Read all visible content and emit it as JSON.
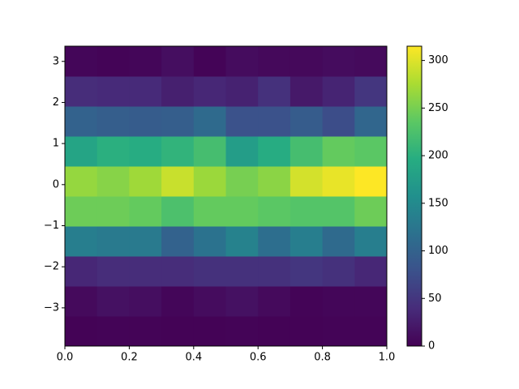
{
  "chart_data": {
    "type": "hist2d",
    "xbins": [
      0,
      0.1,
      0.2,
      0.3,
      0.4,
      0.5,
      0.6,
      0.7,
      0.8,
      0.9,
      1.0
    ],
    "ybins": [
      -3.93,
      -3.2,
      -2.47,
      -1.74,
      -1.01,
      -0.28,
      0.45,
      1.18,
      1.91,
      2.64,
      3.37
    ],
    "counts": [
      [
        2,
        3,
        3,
        2,
        2,
        3,
        2,
        2,
        3,
        3
      ],
      [
        8,
        15,
        12,
        5,
        10,
        15,
        8,
        3,
        5,
        5
      ],
      [
        35,
        40,
        40,
        40,
        45,
        45,
        45,
        50,
        45,
        35
      ],
      [
        135,
        130,
        130,
        100,
        120,
        140,
        115,
        135,
        110,
        135
      ],
      [
        245,
        245,
        240,
        225,
        240,
        240,
        235,
        230,
        230,
        245
      ],
      [
        265,
        258,
        270,
        290,
        268,
        250,
        260,
        295,
        305,
        315
      ],
      [
        185,
        200,
        195,
        205,
        220,
        175,
        195,
        220,
        240,
        235
      ],
      [
        100,
        95,
        92,
        95,
        110,
        80,
        80,
        92,
        75,
        105
      ],
      [
        40,
        38,
        38,
        28,
        35,
        30,
        45,
        22,
        32,
        50
      ],
      [
        5,
        3,
        5,
        12,
        3,
        10,
        7,
        7,
        10,
        8
      ]
    ],
    "colormap": "viridis",
    "xlim": [
      0,
      1
    ],
    "xticks": [
      0.0,
      0.2,
      0.4,
      0.6,
      0.8,
      1.0
    ],
    "xticklabels": [
      "0.0",
      "0.2",
      "0.4",
      "0.6",
      "0.8",
      "1.0"
    ],
    "ylim": [
      -3.93,
      3.37
    ],
    "yticks": [
      {
        "value": -3,
        "label": "−3"
      },
      {
        "value": -2,
        "label": "−2"
      },
      {
        "value": -1,
        "label": "−1"
      },
      0,
      1,
      2,
      3
    ],
    "clim": [
      0,
      315
    ],
    "cticks": [
      0,
      50,
      100,
      150,
      200,
      250,
      300
    ]
  }
}
